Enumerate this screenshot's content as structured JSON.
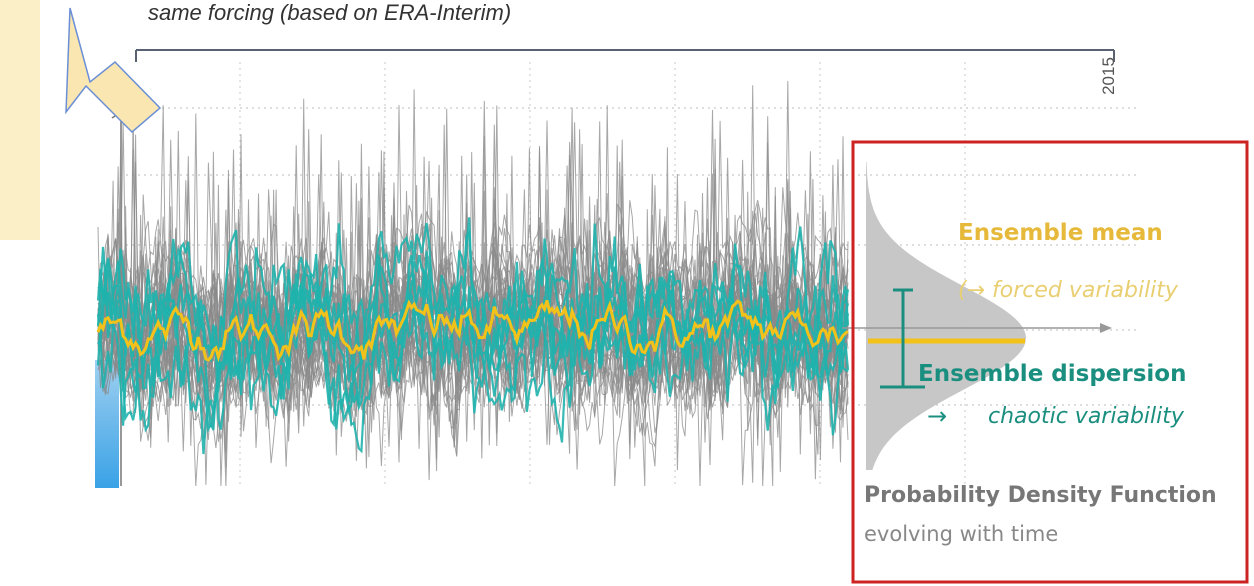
{
  "caption": "same forcing (based on ERA-Interim)",
  "timeline": {
    "end_label": "2015"
  },
  "annotation": {
    "ensemble_mean": "Ensemble mean",
    "forced": "(→ forced variability",
    "ensemble_dispersion": "Ensemble dispersion",
    "arrow": "→",
    "chaotic": "chaotic variability",
    "pdf_title": "Probability Density Function",
    "pdf_subtitle": "evolving with time"
  },
  "colors": {
    "members": "#8a8a8a",
    "highlighted_members": "#1fb3ad",
    "ensemble_mean": "#f2c21b",
    "box_border": "#cc2222",
    "pdf_fill": "#c4c4c4",
    "arrow_fill": "#fae6b0"
  },
  "icons": {
    "pointer": "arrow-icon"
  },
  "chart_data": {
    "type": "line",
    "description_of_series": [
      "ensemble members",
      "highlighted members",
      "ensemble mean"
    ],
    "x_end_label": "2015",
    "grid": true,
    "legend": "none"
  }
}
